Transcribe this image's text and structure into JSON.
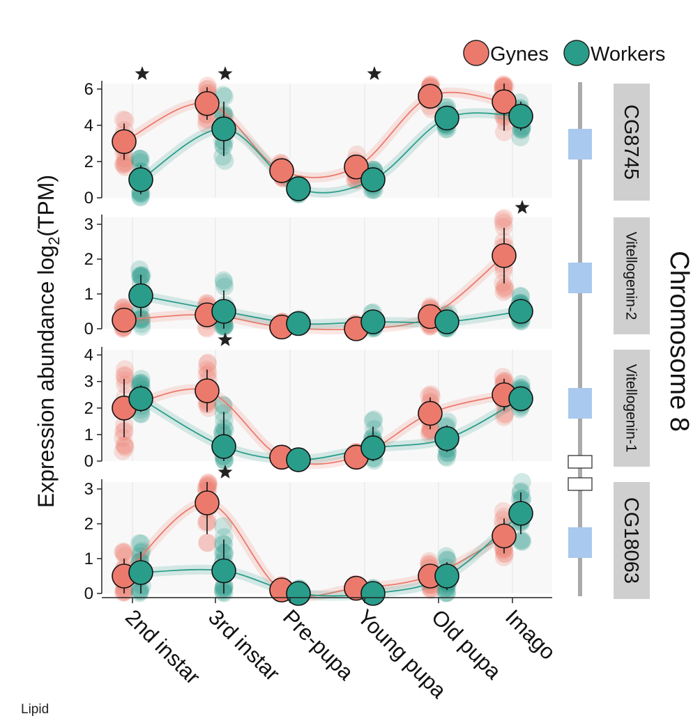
{
  "legend": {
    "gynes_label": "Gynes",
    "workers_label": "Workers"
  },
  "ylabel_main": "Expression abundance log",
  "ylabel_sub": "2",
  "ylabel_tail": "(TPM)",
  "chromosome_label": "Chromosome 8",
  "footer_label": "Lipid",
  "colors": {
    "gynes": "#ec7a6c",
    "workers": "#2a9d8a",
    "gene_block": "#a9c9ee",
    "panel_bg": "#f8f8f8",
    "label_bg": "#cfcfcf"
  },
  "chart_data": {
    "type": "scatter",
    "categories": [
      "2nd instar",
      "3rd instar",
      "Pre-pupa",
      "Young pupa",
      "Old pupa",
      "Imago"
    ],
    "series_names": [
      "Gynes",
      "Workers"
    ],
    "panels": [
      {
        "gene": "CG8745",
        "ylim": [
          0,
          6.3
        ],
        "yticks": [
          "0",
          "2",
          "4",
          "6"
        ],
        "gynes": {
          "mean": [
            3.1,
            5.2,
            1.5,
            1.7,
            5.6,
            5.3
          ],
          "err": [
            1.0,
            0.9,
            0.3,
            0.5,
            0.5,
            1.6
          ]
        },
        "workers": {
          "mean": [
            1.0,
            3.8,
            0.5,
            1.0,
            4.4,
            4.5
          ],
          "err": [
            0.8,
            1.5,
            0.2,
            0.4,
            0.5,
            0.8
          ]
        },
        "significant": [
          "2nd instar",
          "3rd instar",
          "Young pupa"
        ]
      },
      {
        "gene": "Vitellogenin-2",
        "ylim": [
          0,
          3.2
        ],
        "yticks": [
          "0",
          "1",
          "2",
          "3"
        ],
        "gynes": {
          "mean": [
            0.25,
            0.4,
            0.05,
            0.0,
            0.35,
            2.1
          ],
          "err": [
            0.3,
            0.3,
            0.1,
            0.05,
            0.2,
            0.8
          ]
        },
        "workers": {
          "mean": [
            0.95,
            0.5,
            0.15,
            0.2,
            0.2,
            0.5
          ],
          "err": [
            0.6,
            0.6,
            0.1,
            0.2,
            0.2,
            0.3
          ]
        },
        "significant": [
          "Imago"
        ]
      },
      {
        "gene": "Vitellogenin-1",
        "ylim": [
          0,
          4.2
        ],
        "yticks": [
          "0",
          "1",
          "2",
          "3",
          "4"
        ],
        "gynes": {
          "mean": [
            2.0,
            2.65,
            0.15,
            0.15,
            1.8,
            2.5
          ],
          "err": [
            1.1,
            0.8,
            0.1,
            0.1,
            0.6,
            0.6
          ]
        },
        "workers": {
          "mean": [
            2.35,
            0.55,
            0.05,
            0.5,
            0.85,
            2.35
          ],
          "err": [
            0.5,
            1.3,
            0.1,
            0.8,
            0.5,
            0.4
          ]
        },
        "significant": [
          "3rd instar"
        ]
      },
      {
        "gene": "CG18063",
        "ylim": [
          0,
          3.2
        ],
        "yticks": [
          "0",
          "1",
          "2",
          "3"
        ],
        "gynes": {
          "mean": [
            0.5,
            2.6,
            0.1,
            0.15,
            0.5,
            1.65
          ],
          "err": [
            0.5,
            0.9,
            0.1,
            0.1,
            0.3,
            0.5
          ]
        },
        "workers": {
          "mean": [
            0.6,
            0.65,
            0.0,
            0.0,
            0.5,
            2.3
          ],
          "err": [
            0.6,
            0.9,
            0.05,
            0.05,
            0.4,
            0.6
          ]
        },
        "significant": [
          "3rd instar"
        ]
      }
    ]
  }
}
